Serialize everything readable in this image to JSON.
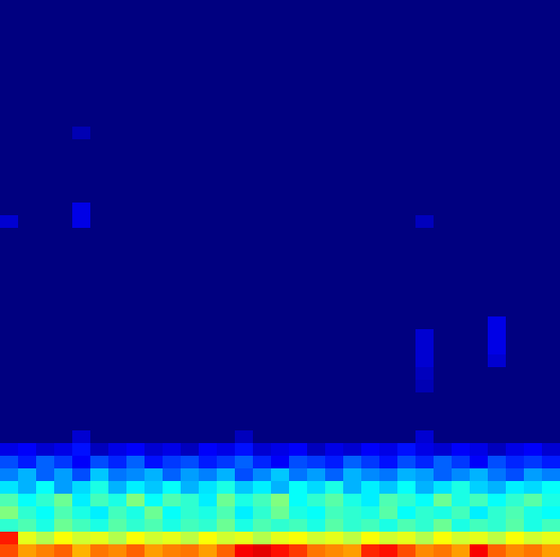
{
  "chart_data": {
    "type": "heatmap",
    "tick_labels": false,
    "zlim": [
      0,
      1
    ],
    "cells": [
      [
        0,
        0,
        0,
        0,
        0,
        0,
        0,
        0,
        0,
        0,
        0,
        0,
        0,
        0,
        0,
        0,
        0,
        0,
        0,
        0,
        0,
        0,
        0,
        0,
        0,
        0,
        0,
        0,
        0,
        0,
        0
      ],
      [
        0,
        0,
        0,
        0,
        0,
        0,
        0,
        0,
        0,
        0,
        0,
        0,
        0,
        0,
        0,
        0,
        0,
        0,
        0,
        0,
        0,
        0,
        0,
        0,
        0,
        0,
        0,
        0,
        0,
        0,
        0
      ],
      [
        0,
        0,
        0,
        0,
        0,
        0,
        0,
        0,
        0,
        0,
        0,
        0,
        0,
        0,
        0,
        0,
        0,
        0,
        0,
        0,
        0,
        0,
        0,
        0,
        0,
        0,
        0,
        0,
        0,
        0,
        0
      ],
      [
        0,
        0,
        0,
        0,
        0,
        0,
        0,
        0,
        0,
        0,
        0,
        0,
        0,
        0,
        0,
        0,
        0,
        0,
        0,
        0,
        0,
        0,
        0,
        0,
        0,
        0,
        0,
        0,
        0,
        0,
        0
      ],
      [
        0,
        0,
        0,
        0,
        0,
        0,
        0,
        0,
        0,
        0,
        0,
        0,
        0,
        0,
        0,
        0,
        0,
        0,
        0,
        0,
        0,
        0,
        0,
        0,
        0,
        0,
        0,
        0,
        0,
        0,
        0
      ],
      [
        0,
        0,
        0,
        0,
        0,
        0,
        0,
        0,
        0,
        0,
        0,
        0,
        0,
        0,
        0,
        0,
        0,
        0,
        0,
        0,
        0,
        0,
        0,
        0,
        0,
        0,
        0,
        0,
        0,
        0,
        0
      ],
      [
        0,
        0,
        0,
        0,
        0,
        0,
        0,
        0,
        0,
        0,
        0,
        0,
        0,
        0,
        0,
        0,
        0,
        0,
        0,
        0,
        0,
        0,
        0,
        0,
        0,
        0,
        0,
        0,
        0,
        0,
        0
      ],
      [
        0,
        0,
        0,
        0,
        0,
        0,
        0,
        0,
        0,
        0,
        0,
        0,
        0,
        0,
        0,
        0,
        0,
        0,
        0,
        0,
        0,
        0,
        0,
        0,
        0,
        0,
        0,
        0,
        0,
        0,
        0
      ],
      [
        0,
        0,
        0,
        0,
        0,
        0,
        0,
        0,
        0,
        0,
        0,
        0,
        0,
        0,
        0,
        0,
        0,
        0,
        0,
        0,
        0,
        0,
        0,
        0,
        0,
        0,
        0,
        0,
        0,
        0,
        0
      ],
      [
        0,
        0,
        0,
        0,
        0,
        0,
        0,
        0,
        0,
        0,
        0,
        0,
        0,
        0,
        0,
        0,
        0,
        0,
        0,
        0,
        0,
        0,
        0,
        0,
        0,
        0,
        0,
        0,
        0,
        0,
        0
      ],
      [
        0,
        0,
        0,
        0,
        0.05,
        0,
        0,
        0,
        0,
        0,
        0,
        0,
        0,
        0,
        0,
        0,
        0,
        0,
        0,
        0,
        0,
        0,
        0,
        0,
        0,
        0,
        0,
        0,
        0,
        0,
        0
      ],
      [
        0,
        0,
        0,
        0,
        0,
        0,
        0,
        0,
        0,
        0,
        0,
        0,
        0,
        0,
        0,
        0,
        0,
        0,
        0,
        0,
        0,
        0,
        0,
        0,
        0,
        0,
        0,
        0,
        0,
        0,
        0
      ],
      [
        0,
        0,
        0,
        0,
        0,
        0,
        0,
        0,
        0,
        0,
        0,
        0,
        0,
        0,
        0,
        0,
        0,
        0,
        0,
        0,
        0,
        0,
        0,
        0,
        0,
        0,
        0,
        0,
        0,
        0,
        0
      ],
      [
        0,
        0,
        0,
        0,
        0,
        0,
        0,
        0,
        0,
        0,
        0,
        0,
        0,
        0,
        0,
        0,
        0,
        0,
        0,
        0,
        0,
        0,
        0,
        0,
        0,
        0,
        0,
        0,
        0,
        0,
        0
      ],
      [
        0,
        0,
        0,
        0,
        0,
        0,
        0,
        0,
        0,
        0,
        0,
        0,
        0,
        0,
        0,
        0,
        0,
        0,
        0,
        0,
        0,
        0,
        0,
        0,
        0,
        0,
        0,
        0,
        0,
        0,
        0
      ],
      [
        0,
        0,
        0,
        0,
        0,
        0,
        0,
        0,
        0,
        0,
        0,
        0,
        0,
        0,
        0,
        0,
        0,
        0,
        0,
        0,
        0,
        0,
        0,
        0,
        0,
        0,
        0,
        0,
        0,
        0,
        0
      ],
      [
        0,
        0,
        0,
        0,
        0.1,
        0,
        0,
        0,
        0,
        0,
        0,
        0,
        0,
        0,
        0,
        0,
        0,
        0,
        0,
        0,
        0,
        0,
        0,
        0,
        0,
        0,
        0,
        0,
        0,
        0,
        0
      ],
      [
        0.08,
        0,
        0,
        0,
        0.1,
        0,
        0,
        0,
        0,
        0,
        0,
        0,
        0,
        0,
        0,
        0,
        0,
        0,
        0,
        0,
        0,
        0,
        0,
        0.06,
        0,
        0,
        0,
        0,
        0,
        0,
        0
      ],
      [
        0,
        0,
        0,
        0,
        0,
        0,
        0,
        0,
        0,
        0,
        0,
        0,
        0,
        0,
        0,
        0,
        0,
        0,
        0,
        0,
        0,
        0,
        0,
        0,
        0,
        0,
        0,
        0,
        0,
        0,
        0
      ],
      [
        0,
        0,
        0,
        0,
        0,
        0,
        0,
        0,
        0,
        0,
        0,
        0,
        0,
        0,
        0,
        0,
        0,
        0,
        0,
        0,
        0,
        0,
        0,
        0,
        0,
        0,
        0,
        0,
        0,
        0,
        0
      ],
      [
        0,
        0,
        0,
        0,
        0,
        0,
        0,
        0,
        0,
        0,
        0,
        0,
        0,
        0,
        0,
        0,
        0,
        0,
        0,
        0,
        0,
        0,
        0,
        0,
        0,
        0,
        0,
        0,
        0,
        0,
        0
      ],
      [
        0,
        0,
        0,
        0,
        0,
        0,
        0,
        0,
        0,
        0,
        0,
        0,
        0,
        0,
        0,
        0,
        0,
        0,
        0,
        0,
        0,
        0,
        0,
        0,
        0,
        0,
        0,
        0,
        0,
        0,
        0
      ],
      [
        0,
        0,
        0,
        0,
        0,
        0,
        0,
        0,
        0,
        0,
        0,
        0,
        0,
        0,
        0,
        0,
        0,
        0,
        0,
        0,
        0,
        0,
        0,
        0,
        0,
        0,
        0,
        0,
        0,
        0,
        0
      ],
      [
        0,
        0,
        0,
        0,
        0,
        0,
        0,
        0,
        0,
        0,
        0,
        0,
        0,
        0,
        0,
        0,
        0,
        0,
        0,
        0,
        0,
        0,
        0,
        0,
        0,
        0,
        0,
        0,
        0,
        0,
        0
      ],
      [
        0,
        0,
        0,
        0,
        0,
        0,
        0,
        0,
        0,
        0,
        0,
        0,
        0,
        0,
        0,
        0,
        0,
        0,
        0,
        0,
        0,
        0,
        0,
        0,
        0,
        0,
        0,
        0,
        0,
        0,
        0
      ],
      [
        0,
        0,
        0,
        0,
        0,
        0,
        0,
        0,
        0,
        0,
        0,
        0,
        0,
        0,
        0,
        0,
        0,
        0,
        0,
        0,
        0,
        0,
        0,
        0,
        0,
        0,
        0,
        0.1,
        0,
        0,
        0
      ],
      [
        0,
        0,
        0,
        0,
        0,
        0,
        0,
        0,
        0,
        0,
        0,
        0,
        0,
        0,
        0,
        0,
        0,
        0,
        0,
        0,
        0,
        0,
        0,
        0.08,
        0,
        0,
        0,
        0.1,
        0,
        0,
        0
      ],
      [
        0,
        0,
        0,
        0,
        0,
        0,
        0,
        0,
        0,
        0,
        0,
        0,
        0,
        0,
        0,
        0,
        0,
        0,
        0,
        0,
        0,
        0,
        0,
        0.08,
        0,
        0,
        0,
        0.1,
        0,
        0,
        0
      ],
      [
        0,
        0,
        0,
        0,
        0,
        0,
        0,
        0,
        0,
        0,
        0,
        0,
        0,
        0,
        0,
        0,
        0,
        0,
        0,
        0,
        0,
        0,
        0,
        0.08,
        0,
        0,
        0,
        0.08,
        0,
        0,
        0
      ],
      [
        0,
        0,
        0,
        0,
        0,
        0,
        0,
        0,
        0,
        0,
        0,
        0,
        0,
        0,
        0,
        0,
        0,
        0,
        0,
        0,
        0,
        0,
        0,
        0.06,
        0,
        0,
        0,
        0,
        0,
        0,
        0
      ],
      [
        0,
        0,
        0,
        0,
        0,
        0,
        0,
        0,
        0,
        0,
        0,
        0,
        0,
        0,
        0,
        0,
        0,
        0,
        0,
        0,
        0,
        0,
        0,
        0.05,
        0,
        0,
        0,
        0,
        0,
        0,
        0
      ],
      [
        0,
        0,
        0,
        0,
        0,
        0,
        0,
        0,
        0,
        0,
        0,
        0,
        0,
        0,
        0,
        0,
        0,
        0,
        0,
        0,
        0,
        0,
        0,
        0,
        0,
        0,
        0,
        0,
        0,
        0,
        0
      ],
      [
        0,
        0,
        0,
        0,
        0,
        0,
        0,
        0,
        0,
        0,
        0,
        0,
        0,
        0,
        0,
        0,
        0,
        0,
        0,
        0,
        0,
        0,
        0,
        0,
        0,
        0,
        0,
        0,
        0,
        0,
        0
      ],
      [
        0,
        0,
        0,
        0,
        0,
        0,
        0,
        0,
        0,
        0,
        0,
        0,
        0,
        0,
        0,
        0,
        0,
        0,
        0,
        0,
        0,
        0,
        0,
        0,
        0,
        0,
        0,
        0,
        0,
        0,
        0
      ],
      [
        0,
        0,
        0,
        0,
        0.08,
        0,
        0,
        0,
        0,
        0,
        0,
        0,
        0,
        0.06,
        0,
        0,
        0,
        0,
        0,
        0,
        0,
        0,
        0,
        0.08,
        0,
        0,
        0,
        0,
        0,
        0,
        0
      ],
      [
        0.1,
        0.12,
        0.08,
        0.1,
        0.14,
        0.06,
        0.1,
        0.12,
        0.08,
        0.1,
        0.06,
        0.12,
        0.1,
        0.14,
        0.08,
        0.1,
        0.12,
        0.06,
        0.1,
        0.08,
        0.12,
        0.1,
        0.14,
        0.1,
        0.08,
        0.12,
        0.1,
        0.06,
        0.1,
        0.12,
        0.08
      ],
      [
        0.2,
        0.15,
        0.22,
        0.18,
        0.12,
        0.2,
        0.16,
        0.22,
        0.14,
        0.18,
        0.2,
        0.15,
        0.18,
        0.22,
        0.16,
        0.12,
        0.2,
        0.18,
        0.15,
        0.22,
        0.18,
        0.14,
        0.2,
        0.16,
        0.22,
        0.18,
        0.12,
        0.2,
        0.16,
        0.18,
        0.15
      ],
      [
        0.25,
        0.3,
        0.22,
        0.28,
        0.2,
        0.32,
        0.24,
        0.26,
        0.3,
        0.22,
        0.28,
        0.25,
        0.3,
        0.2,
        0.26,
        0.32,
        0.24,
        0.28,
        0.22,
        0.3,
        0.26,
        0.24,
        0.3,
        0.28,
        0.22,
        0.26,
        0.3,
        0.24,
        0.2,
        0.28,
        0.25
      ],
      [
        0.35,
        0.3,
        0.38,
        0.28,
        0.34,
        0.4,
        0.3,
        0.36,
        0.32,
        0.38,
        0.3,
        0.35,
        0.4,
        0.32,
        0.36,
        0.3,
        0.38,
        0.34,
        0.4,
        0.3,
        0.36,
        0.32,
        0.38,
        0.3,
        0.35,
        0.4,
        0.33,
        0.3,
        0.36,
        0.34,
        0.38
      ],
      [
        0.45,
        0.38,
        0.42,
        0.48,
        0.36,
        0.44,
        0.4,
        0.5,
        0.38,
        0.45,
        0.42,
        0.36,
        0.48,
        0.4,
        0.44,
        0.5,
        0.38,
        0.42,
        0.46,
        0.4,
        0.36,
        0.45,
        0.42,
        0.38,
        0.48,
        0.4,
        0.44,
        0.38,
        0.42,
        0.46,
        0.4
      ],
      [
        0.5,
        0.42,
        0.38,
        0.45,
        0.4,
        0.36,
        0.44,
        0.4,
        0.48,
        0.38,
        0.42,
        0.4,
        0.45,
        0.36,
        0.42,
        0.48,
        0.4,
        0.38,
        0.44,
        0.42,
        0.4,
        0.46,
        0.38,
        0.42,
        0.4,
        0.44,
        0.36,
        0.42,
        0.45,
        0.4,
        0.38
      ],
      [
        0.42,
        0.45,
        0.4,
        0.48,
        0.44,
        0.4,
        0.46,
        0.42,
        0.45,
        0.4,
        0.44,
        0.42,
        0.48,
        0.4,
        0.45,
        0.42,
        0.44,
        0.4,
        0.46,
        0.42,
        0.44,
        0.4,
        0.45,
        0.42,
        0.48,
        0.4,
        0.44,
        0.42,
        0.46,
        0.4,
        0.44
      ],
      [
        0.85,
        0.6,
        0.55,
        0.62,
        0.58,
        0.6,
        0.55,
        0.62,
        0.58,
        0.6,
        0.56,
        0.62,
        0.58,
        0.6,
        0.55,
        0.6,
        0.62,
        0.58,
        0.6,
        0.56,
        0.62,
        0.58,
        0.6,
        0.55,
        0.62,
        0.58,
        0.6,
        0.56,
        0.62,
        0.58,
        0.6
      ],
      [
        0.8,
        0.72,
        0.75,
        0.78,
        0.7,
        0.76,
        0.74,
        0.78,
        0.72,
        0.75,
        0.76,
        0.72,
        0.78,
        0.88,
        0.9,
        0.86,
        0.82,
        0.76,
        0.74,
        0.72,
        0.84,
        0.86,
        0.8,
        0.74,
        0.76,
        0.72,
        0.88,
        0.78,
        0.74,
        0.76,
        0.72
      ]
    ]
  }
}
